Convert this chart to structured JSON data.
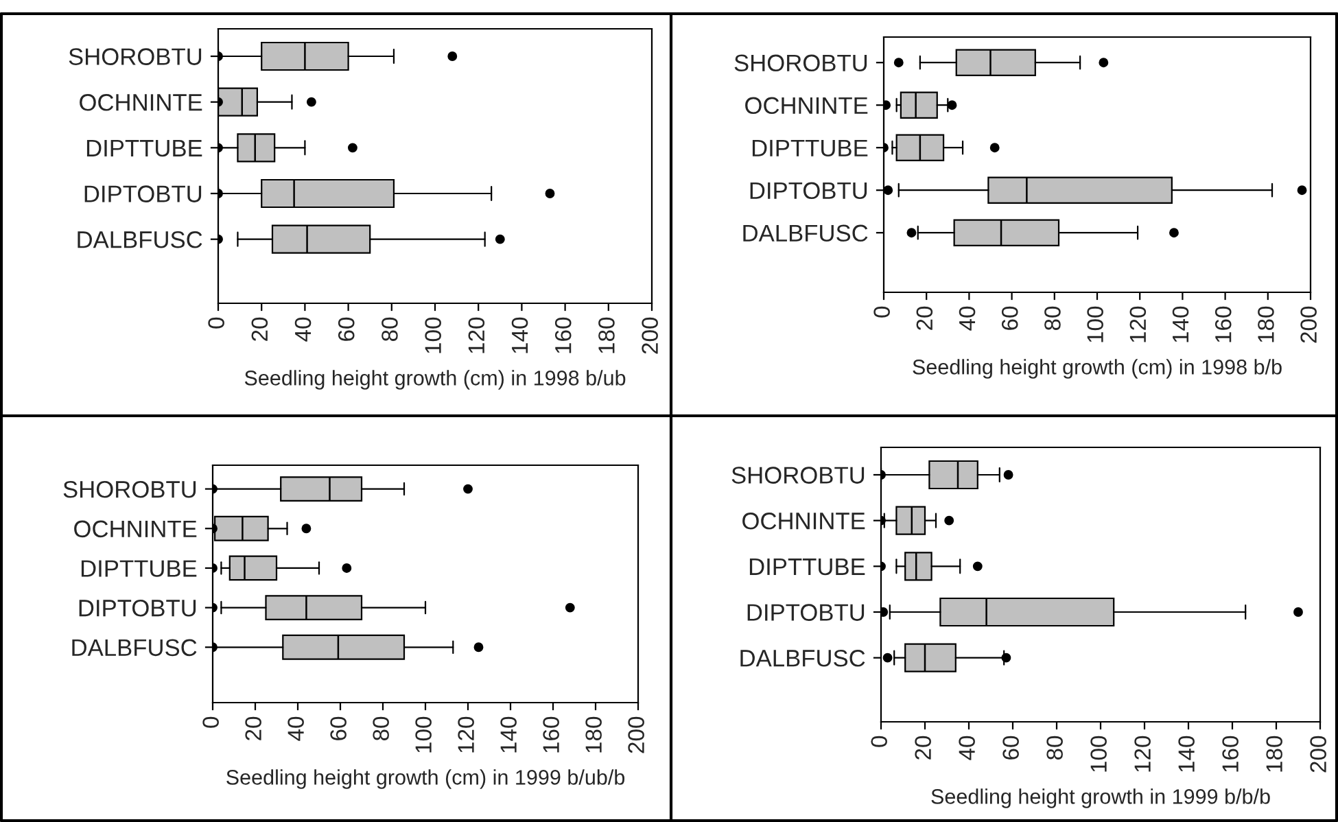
{
  "chart_data": [
    {
      "type": "box",
      "orientation": "horizontal",
      "xlabel": "Seedling height growth (cm) in 1998 b/ub",
      "categories": [
        "SHOROBTU",
        "OCHNINTE",
        "DIPTTUBE",
        "DIPTOBTU",
        "DALBFUSC"
      ],
      "color": "#c0c0c0",
      "xlim": [
        0,
        200
      ],
      "xticks": [
        0,
        20,
        40,
        60,
        80,
        100,
        120,
        140,
        160,
        180,
        200
      ],
      "boxes": [
        {
          "low": 0,
          "q1": 20,
          "median": 40,
          "q3": 60,
          "high": 81,
          "outliers": [
            0,
            108
          ]
        },
        {
          "low": 0,
          "q1": 0,
          "median": 11,
          "q3": 18,
          "high": 34,
          "outliers": [
            0,
            43
          ]
        },
        {
          "low": 0,
          "q1": 9,
          "median": 17,
          "q3": 26,
          "high": 40,
          "outliers": [
            0,
            62
          ]
        },
        {
          "low": 0,
          "q1": 20,
          "median": 35,
          "q3": 81,
          "high": 126,
          "outliers": [
            0,
            153
          ]
        },
        {
          "low": 9,
          "q1": 25,
          "median": 41,
          "q3": 70,
          "high": 123,
          "outliers": [
            0,
            130
          ]
        }
      ]
    },
    {
      "type": "box",
      "orientation": "horizontal",
      "xlabel": "Seedling height growth (cm) in 1998 b/b",
      "categories": [
        "SHOROBTU",
        "OCHNINTE",
        "DIPTTUBE",
        "DIPTOBTU",
        "DALBFUSC"
      ],
      "color": "#c0c0c0",
      "xlim": [
        0,
        200
      ],
      "xticks": [
        0,
        20,
        40,
        60,
        80,
        100,
        120,
        140,
        160,
        180,
        200
      ],
      "boxes": [
        {
          "low": 17,
          "q1": 34,
          "median": 50,
          "q3": 71,
          "high": 92,
          "outliers": [
            7,
            103
          ]
        },
        {
          "low": 6,
          "q1": 8,
          "median": 15,
          "q3": 25,
          "high": 30,
          "outliers": [
            1,
            32
          ]
        },
        {
          "low": 4,
          "q1": 6,
          "median": 17,
          "q3": 28,
          "high": 37,
          "outliers": [
            0,
            52
          ]
        },
        {
          "low": 7,
          "q1": 49,
          "median": 67,
          "q3": 135,
          "high": 182,
          "outliers": [
            2,
            196
          ]
        },
        {
          "low": 16,
          "q1": 33,
          "median": 55,
          "q3": 82,
          "high": 119,
          "outliers": [
            13,
            136
          ]
        }
      ]
    },
    {
      "type": "box",
      "orientation": "horizontal",
      "xlabel": "Seedling height growth (cm) in 1999 b/ub/b",
      "categories": [
        "SHOROBTU",
        "OCHNINTE",
        "DIPTTUBE",
        "DIPTOBTU",
        "DALBFUSC"
      ],
      "color": "#c0c0c0",
      "xlim": [
        0,
        200
      ],
      "xticks": [
        0,
        20,
        40,
        60,
        80,
        100,
        120,
        140,
        160,
        180,
        200
      ],
      "boxes": [
        {
          "low": 0,
          "q1": 32,
          "median": 55,
          "q3": 70,
          "high": 90,
          "outliers": [
            0,
            120
          ]
        },
        {
          "low": 0,
          "q1": 1,
          "median": 14,
          "q3": 26,
          "high": 35,
          "outliers": [
            0,
            44
          ]
        },
        {
          "low": 4,
          "q1": 8,
          "median": 15,
          "q3": 30,
          "high": 50,
          "outliers": [
            0,
            63
          ]
        },
        {
          "low": 4,
          "q1": 25,
          "median": 44,
          "q3": 70,
          "high": 100,
          "outliers": [
            0,
            168
          ]
        },
        {
          "low": 0,
          "q1": 33,
          "median": 59,
          "q3": 90,
          "high": 113,
          "outliers": [
            0,
            125
          ]
        }
      ]
    },
    {
      "type": "box",
      "orientation": "horizontal",
      "xlabel": "Seedling height growth in 1999 b/b/b",
      "categories": [
        "SHOROBTU",
        "OCHNINTE",
        "DIPTTUBE",
        "DIPTOBTU",
        "DALBFUSC"
      ],
      "color": "#c0c0c0",
      "xlim": [
        0,
        200
      ],
      "xticks": [
        0,
        20,
        40,
        60,
        80,
        100,
        120,
        140,
        160,
        180,
        200
      ],
      "boxes": [
        {
          "low": 0,
          "q1": 22,
          "median": 35,
          "q3": 44,
          "high": 54,
          "outliers": [
            0,
            58
          ]
        },
        {
          "low": 1.5,
          "q1": 7,
          "median": 14,
          "q3": 20,
          "high": 25,
          "outliers": [
            0,
            31
          ]
        },
        {
          "low": 7,
          "q1": 11,
          "median": 16,
          "q3": 23,
          "high": 36,
          "outliers": [
            0,
            44
          ]
        },
        {
          "low": 4,
          "q1": 27,
          "median": 48,
          "q3": 106,
          "high": 166,
          "outliers": [
            1,
            190
          ]
        },
        {
          "low": 6,
          "q1": 11,
          "median": 20,
          "q3": 34,
          "high": 56,
          "outliers": [
            3,
            57
          ]
        }
      ]
    }
  ]
}
